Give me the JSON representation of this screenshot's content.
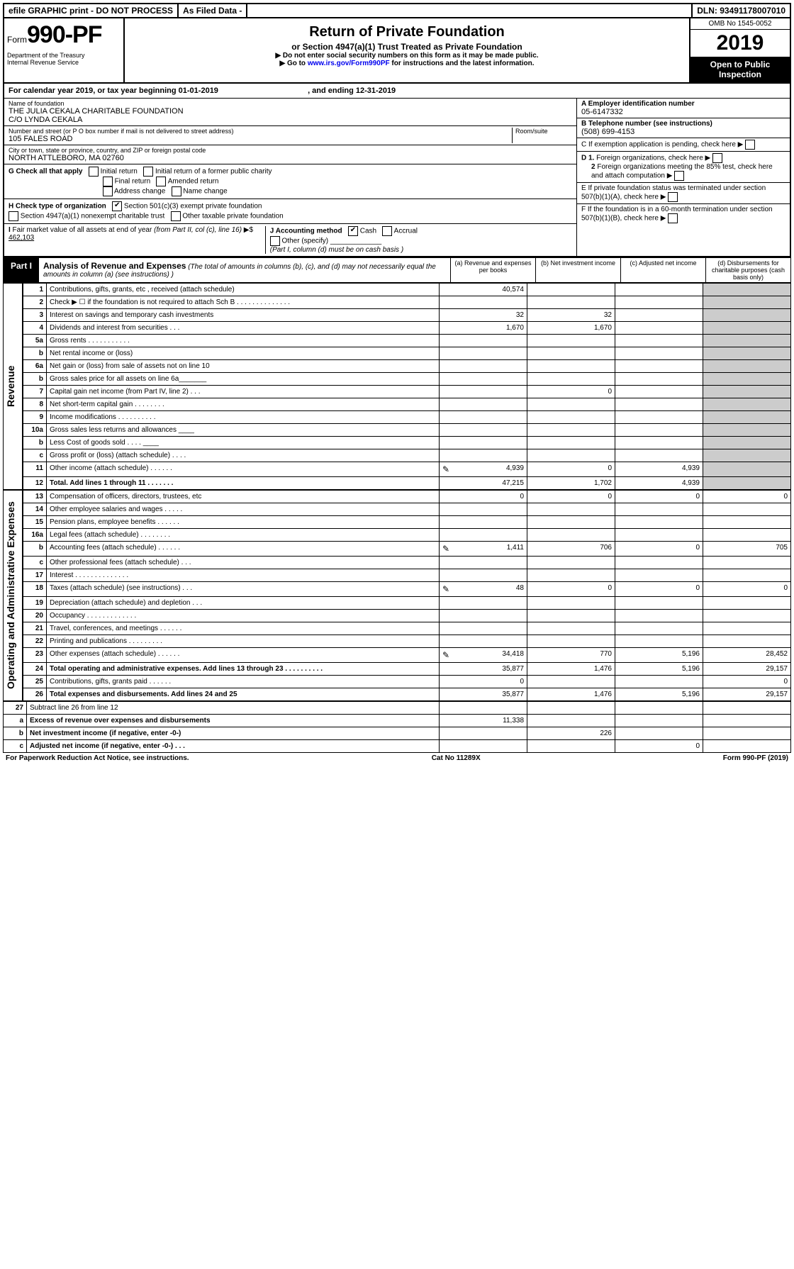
{
  "top": {
    "efile": "efile GRAPHIC print - DO NOT PROCESS",
    "asfiled": "As Filed Data -",
    "dln": "DLN: 93491178007010"
  },
  "header": {
    "form_prefix": "Form",
    "form_no": "990-PF",
    "dept": "Department of the Treasury\nInternal Revenue Service",
    "title": "Return of Private Foundation",
    "subtitle": "or Section 4947(a)(1) Trust Treated as Private Foundation",
    "note1": "▶ Do not enter social security numbers on this form as it may be made public.",
    "note2": "▶ Go to www.irs.gov/Form990PF for instructions and the latest information.",
    "link_text": "www.irs.gov/Form990PF",
    "omb": "OMB No 1545-0052",
    "year": "2019",
    "open": "Open to Public Inspection"
  },
  "cal": {
    "text_a": "For calendar year 2019, or tax year beginning ",
    "begin": "01-01-2019",
    "text_b": ", and ending ",
    "end": "12-31-2019"
  },
  "foundation": {
    "name_label": "Name of foundation",
    "name": "THE JULIA CEKALA CHARITABLE FOUNDATION\nC/O LYNDA CEKALA",
    "addr_label": "Number and street (or P O  box number if mail is not delivered to street address)",
    "addr": "105 FALES ROAD",
    "room_label": "Room/suite",
    "city_label": "City or town, state or province, country, and ZIP or foreign postal code",
    "city": "NORTH ATTLEBORO, MA  02760"
  },
  "right": {
    "a_label": "A Employer identification number",
    "a_val": "05-6147332",
    "b_label": "B Telephone number (see instructions)",
    "b_val": "(508) 699-4153",
    "c_label": "C If exemption application is pending, check here",
    "d1": "D 1. Foreign organizations, check here",
    "d2": "2 Foreign organizations meeting the 85% test, check here and attach computation",
    "e": "E  If private foundation status was terminated under section 507(b)(1)(A), check here",
    "f": "F  If the foundation is in a 60-month termination under section 507(b)(1)(B), check here"
  },
  "g": {
    "label": "G Check all that apply",
    "opts": [
      "Initial return",
      "Initial return of a former public charity",
      "Final return",
      "Amended return",
      "Address change",
      "Name change"
    ]
  },
  "h": {
    "label": "H Check type of organization",
    "opt1": "Section 501(c)(3) exempt private foundation",
    "opt2": "Section 4947(a)(1) nonexempt charitable trust",
    "opt3": "Other taxable private foundation"
  },
  "i": {
    "label": "I Fair market value of all assets at end of year (from Part II, col  (c), line 16) ▶$ ",
    "val": "462,103"
  },
  "j": {
    "label": "J Accounting method",
    "cash": "Cash",
    "accrual": "Accrual",
    "other": "Other (specify)",
    "note": "(Part I, column (d) must be on cash basis )"
  },
  "part1": {
    "label": "Part I",
    "title": "Analysis of Revenue and Expenses",
    "note": " (The total of amounts in columns (b), (c), and (d) may not necessarily equal the amounts in column (a) (see instructions) )",
    "cols": [
      "(a) Revenue and expenses per books",
      "(b) Net investment income",
      "(c) Adjusted net income",
      "(d) Disbursements for charitable purposes (cash basis only)"
    ]
  },
  "rev_label": "Revenue",
  "exp_label": "Operating and Administrative Expenses",
  "lines_rev": [
    {
      "n": "1",
      "d": "Contributions, gifts, grants, etc , received (attach schedule)",
      "a": "40,574",
      "b": "",
      "c": "",
      "e": ""
    },
    {
      "n": "2",
      "d": "Check ▶ ☐ if the foundation is not required to attach Sch  B    . . . . . . . . . . . . . .",
      "a": "",
      "b": "",
      "c": "",
      "e": ""
    },
    {
      "n": "3",
      "d": "Interest on savings and temporary cash investments",
      "a": "32",
      "b": "32",
      "c": "",
      "e": ""
    },
    {
      "n": "4",
      "d": "Dividends and interest from securities   . . .",
      "a": "1,670",
      "b": "1,670",
      "c": "",
      "e": ""
    },
    {
      "n": "5a",
      "d": "Gross rents   . . . . . . . . . . .",
      "a": "",
      "b": "",
      "c": "",
      "e": ""
    },
    {
      "n": "b",
      "d": "Net rental income or (loss)  ",
      "a": "",
      "b": "",
      "c": "",
      "e": ""
    },
    {
      "n": "6a",
      "d": "Net gain or (loss) from sale of assets not on line 10",
      "a": "",
      "b": "",
      "c": "",
      "e": ""
    },
    {
      "n": "b",
      "d": "Gross sales price for all assets on line 6a_______",
      "a": "",
      "b": "",
      "c": "",
      "e": ""
    },
    {
      "n": "7",
      "d": "Capital gain net income (from Part IV, line 2)  . . .",
      "a": "",
      "b": "0",
      "c": "",
      "e": ""
    },
    {
      "n": "8",
      "d": "Net short-term capital gain . . . . . . . .",
      "a": "",
      "b": "",
      "c": "",
      "e": ""
    },
    {
      "n": "9",
      "d": "Income modifications . . . . . . . . . .",
      "a": "",
      "b": "",
      "c": "",
      "e": ""
    },
    {
      "n": "10a",
      "d": "Gross sales less returns and allowances ____",
      "a": "",
      "b": "",
      "c": "",
      "e": ""
    },
    {
      "n": "b",
      "d": "Less  Cost of goods sold   . . . .  ____",
      "a": "",
      "b": "",
      "c": "",
      "e": ""
    },
    {
      "n": "c",
      "d": "Gross profit or (loss) (attach schedule)    . . . .",
      "a": "",
      "b": "",
      "c": "",
      "e": ""
    },
    {
      "n": "11",
      "d": "Other income (attach schedule)   . . . . . .",
      "a": "4,939",
      "b": "0",
      "c": "4,939",
      "e": "",
      "pencil": true
    },
    {
      "n": "12",
      "d": "Total. Add lines 1 through 11  . . . . . . .",
      "a": "47,215",
      "b": "1,702",
      "c": "4,939",
      "e": "",
      "bold": true
    }
  ],
  "lines_exp": [
    {
      "n": "13",
      "d": "Compensation of officers, directors, trustees, etc",
      "a": "0",
      "b": "0",
      "c": "0",
      "e": "0"
    },
    {
      "n": "14",
      "d": "Other employee salaries and wages   . . . . .",
      "a": "",
      "b": "",
      "c": "",
      "e": ""
    },
    {
      "n": "15",
      "d": "Pension plans, employee benefits . . . . . .",
      "a": "",
      "b": "",
      "c": "",
      "e": ""
    },
    {
      "n": "16a",
      "d": "Legal fees (attach schedule) . . . . . . . .",
      "a": "",
      "b": "",
      "c": "",
      "e": ""
    },
    {
      "n": "b",
      "d": "Accounting fees (attach schedule) . . . . . .",
      "a": "1,411",
      "b": "706",
      "c": "0",
      "e": "705",
      "pencil": true
    },
    {
      "n": "c",
      "d": "Other professional fees (attach schedule)   . . .",
      "a": "",
      "b": "",
      "c": "",
      "e": ""
    },
    {
      "n": "17",
      "d": "Interest . . . . . . . . . . . . . .",
      "a": "",
      "b": "",
      "c": "",
      "e": ""
    },
    {
      "n": "18",
      "d": "Taxes (attach schedule) (see instructions)    . . .",
      "a": "48",
      "b": "0",
      "c": "0",
      "e": "0",
      "pencil": true
    },
    {
      "n": "19",
      "d": "Depreciation (attach schedule) and depletion  . . .",
      "a": "",
      "b": "",
      "c": "",
      "e": ""
    },
    {
      "n": "20",
      "d": "Occupancy  . . . . . . . . . . . . .",
      "a": "",
      "b": "",
      "c": "",
      "e": ""
    },
    {
      "n": "21",
      "d": "Travel, conferences, and meetings . . . . . .",
      "a": "",
      "b": "",
      "c": "",
      "e": ""
    },
    {
      "n": "22",
      "d": "Printing and publications . . . . . . . . .",
      "a": "",
      "b": "",
      "c": "",
      "e": ""
    },
    {
      "n": "23",
      "d": "Other expenses (attach schedule) . . . . . .",
      "a": "34,418",
      "b": "770",
      "c": "5,196",
      "e": "28,452",
      "pencil": true
    },
    {
      "n": "24",
      "d": "Total operating and administrative expenses. Add lines 13 through 23 . . . . . . . . . .",
      "a": "35,877",
      "b": "1,476",
      "c": "5,196",
      "e": "29,157",
      "bold": true
    },
    {
      "n": "25",
      "d": "Contributions, gifts, grants paid    . . . . . .",
      "a": "0",
      "b": "",
      "c": "",
      "e": "0"
    },
    {
      "n": "26",
      "d": "Total expenses and disbursements. Add lines 24 and 25",
      "a": "35,877",
      "b": "1,476",
      "c": "5,196",
      "e": "29,157",
      "bold": true
    }
  ],
  "lines_sum": [
    {
      "n": "27",
      "d": "Subtract line 26 from line 12",
      "a": "",
      "b": "",
      "c": "",
      "e": ""
    },
    {
      "n": "a",
      "d": "Excess of revenue over expenses and disbursements",
      "a": "11,338",
      "b": "",
      "c": "",
      "e": "",
      "bold": true
    },
    {
      "n": "b",
      "d": "Net investment income (if negative, enter -0-)",
      "a": "",
      "b": "226",
      "c": "",
      "e": "",
      "bold": true
    },
    {
      "n": "c",
      "d": "Adjusted net income (if negative, enter -0-) . . .",
      "a": "",
      "b": "",
      "c": "0",
      "e": "",
      "bold": true
    }
  ],
  "footer": {
    "left": "For Paperwork Reduction Act Notice, see instructions.",
    "mid": "Cat  No  11289X",
    "right": "Form 990-PF (2019)"
  }
}
